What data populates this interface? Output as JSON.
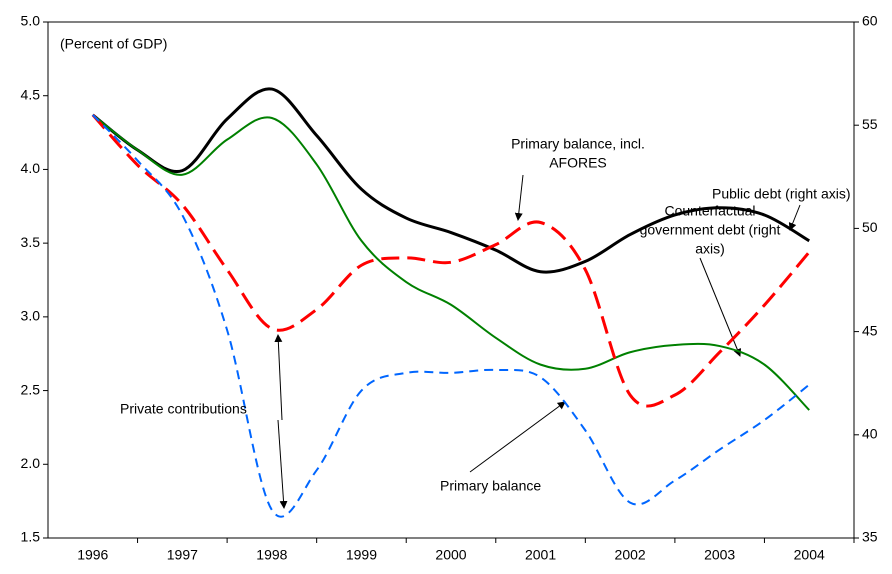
{
  "chart_data": {
    "type": "line",
    "x": [
      1996,
      1996.5,
      1997,
      1997.5,
      1998,
      1998.5,
      1999,
      1999.5,
      2000,
      2000.5,
      2001,
      2001.5,
      2002,
      2002.5,
      2003,
      2003.5,
      2004
    ],
    "xlim": [
      1995.5,
      2004.5
    ],
    "xticks": [
      1996,
      1997,
      1998,
      1999,
      2000,
      2001,
      2002,
      2003,
      2004
    ],
    "ylim": [
      1.5,
      5
    ],
    "yticks": [
      1.5,
      {
        "value": 2,
        "label": "2.0"
      },
      2.5,
      {
        "value": 3,
        "label": "3.0"
      },
      3.5,
      {
        "value": 4,
        "label": "4.0"
      },
      4.5,
      {
        "value": 5,
        "label": "5.0"
      }
    ],
    "y2lim": [
      35,
      60
    ],
    "y2ticks": [
      35,
      40,
      45,
      50,
      55,
      60
    ],
    "series": [
      {
        "name": "Public debt (right axis)",
        "color": "#000000",
        "axis": "y2",
        "dash": "solid",
        "width": 3,
        "values": [
          55.5,
          53.8,
          52.8,
          55.3,
          56.75,
          54.5,
          51.9,
          50.5,
          49.8,
          48.95,
          47.9,
          48.4,
          49.7,
          50.65,
          51.0,
          50.65,
          49.4
        ]
      },
      {
        "name": "Counterfactual government debt (right axis)",
        "color": "#008000",
        "axis": "y2",
        "dash": "solid",
        "width": 2,
        "values": [
          55.5,
          53.8,
          52.6,
          54.3,
          55.35,
          53.1,
          49.4,
          47.4,
          46.3,
          44.7,
          43.4,
          43.2,
          44.0,
          44.35,
          44.3,
          43.4,
          41.2
        ]
      },
      {
        "name": "Primary balance, incl. AFORES",
        "color": "#ff0000",
        "axis": "y",
        "dash": "long",
        "width": 3,
        "values": [
          4.37,
          4.03,
          3.76,
          3.32,
          2.92,
          3.05,
          3.35,
          3.4,
          3.37,
          3.49,
          3.64,
          3.32,
          2.47,
          2.47,
          2.76,
          3.08,
          3.44
        ]
      },
      {
        "name": "Primary balance",
        "color": "#0066ff",
        "axis": "y",
        "dash": "short",
        "width": 2,
        "values": [
          4.37,
          4.06,
          3.69,
          2.91,
          1.69,
          1.96,
          2.5,
          2.62,
          2.62,
          2.64,
          2.59,
          2.23,
          1.74,
          1.89,
          2.1,
          2.3,
          2.54
        ]
      }
    ],
    "annotations": [
      {
        "lines": [
          "(Percent of GDP)"
        ]
      },
      {
        "lines": [
          "Primary balance, incl.",
          "AFORES"
        ]
      },
      {
        "lines": [
          "Public debt (right axis)"
        ]
      },
      {
        "lines": [
          "Counterfactual",
          "government debt (right",
          "axis)"
        ]
      },
      {
        "lines": [
          "Private contributions"
        ]
      },
      {
        "lines": [
          "Primary balance"
        ]
      }
    ]
  }
}
